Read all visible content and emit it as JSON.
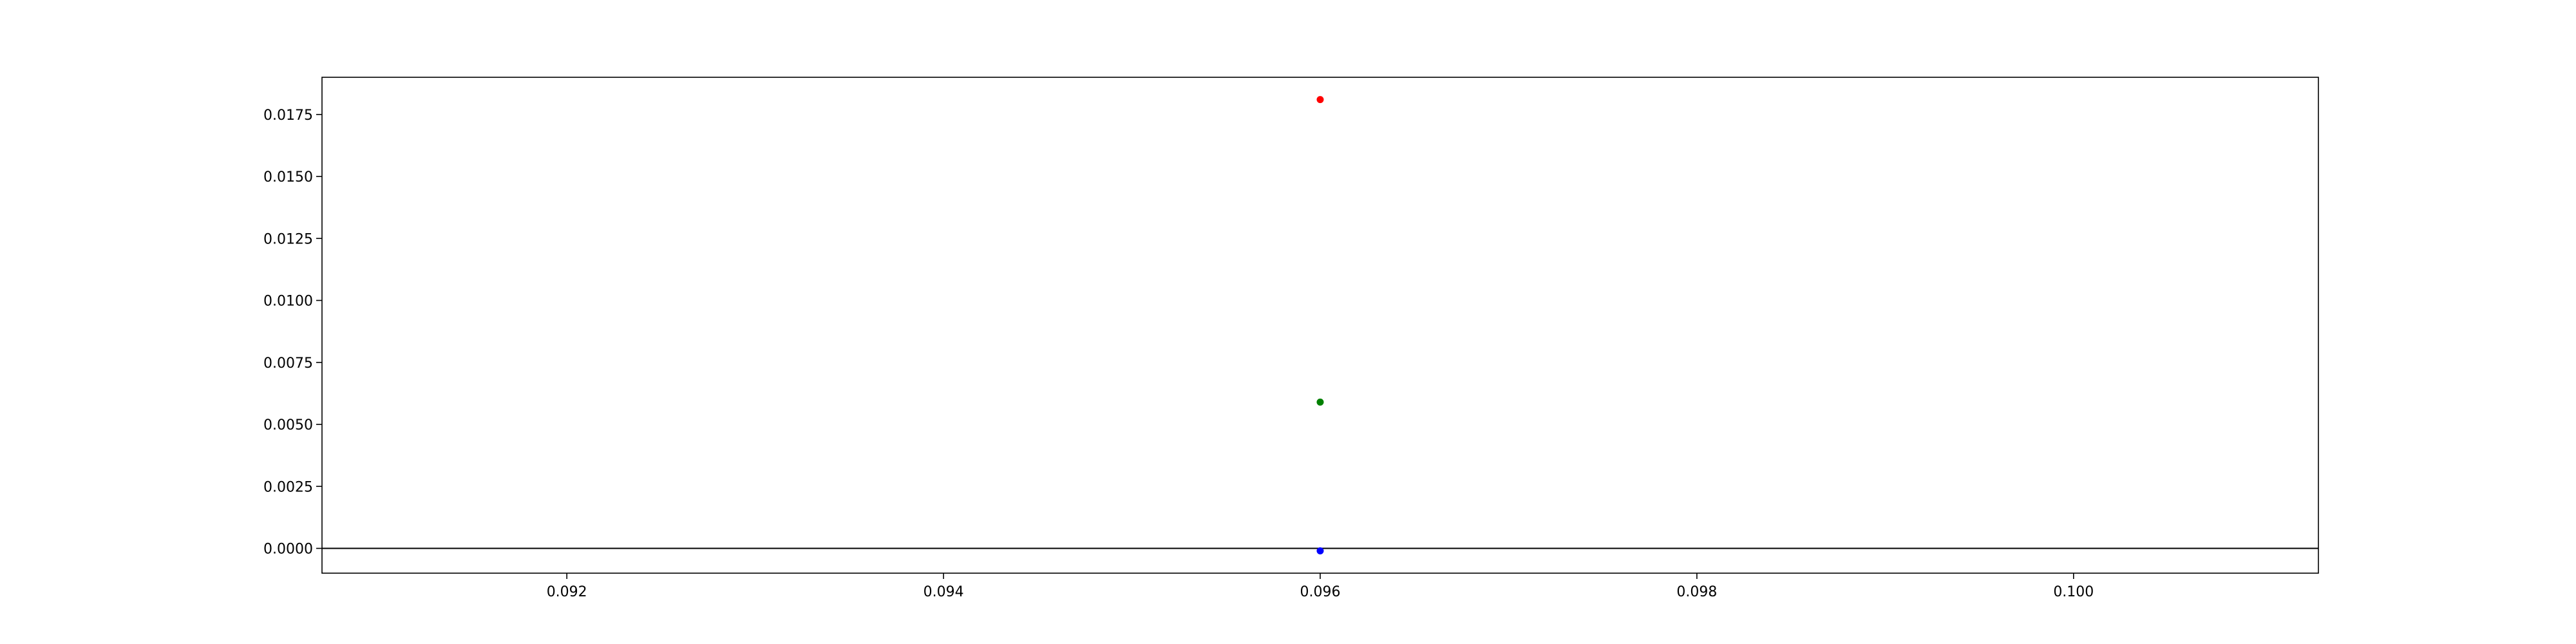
{
  "chart_data": {
    "type": "scatter",
    "title": "",
    "xlabel": "",
    "ylabel": "",
    "xlim": [
      0.0907,
      0.1013
    ],
    "ylim": [
      -0.001,
      0.019
    ],
    "x_ticks": [
      {
        "value": 0.092,
        "label": "0.092"
      },
      {
        "value": 0.094,
        "label": "0.094"
      },
      {
        "value": 0.096,
        "label": "0.096"
      },
      {
        "value": 0.098,
        "label": "0.098"
      },
      {
        "value": 0.1,
        "label": "0.100"
      }
    ],
    "y_ticks": [
      {
        "value": 0.0,
        "label": "0.0000"
      },
      {
        "value": 0.0025,
        "label": "0.0025"
      },
      {
        "value": 0.005,
        "label": "0.0050"
      },
      {
        "value": 0.0075,
        "label": "0.0075"
      },
      {
        "value": 0.01,
        "label": "0.0100"
      },
      {
        "value": 0.0125,
        "label": "0.0125"
      },
      {
        "value": 0.015,
        "label": "0.0150"
      },
      {
        "value": 0.0175,
        "label": "0.0175"
      }
    ],
    "hline": {
      "y": 0.0,
      "color": "#000000"
    },
    "grid": false,
    "series": [
      {
        "color": "#ff0000",
        "points": [
          {
            "x": 0.096,
            "y": 0.0181
          }
        ]
      },
      {
        "color": "#008000",
        "points": [
          {
            "x": 0.096,
            "y": 0.0059
          }
        ]
      },
      {
        "color": "#0000ff",
        "points": [
          {
            "x": 0.096,
            "y": -0.0001
          }
        ]
      }
    ]
  }
}
